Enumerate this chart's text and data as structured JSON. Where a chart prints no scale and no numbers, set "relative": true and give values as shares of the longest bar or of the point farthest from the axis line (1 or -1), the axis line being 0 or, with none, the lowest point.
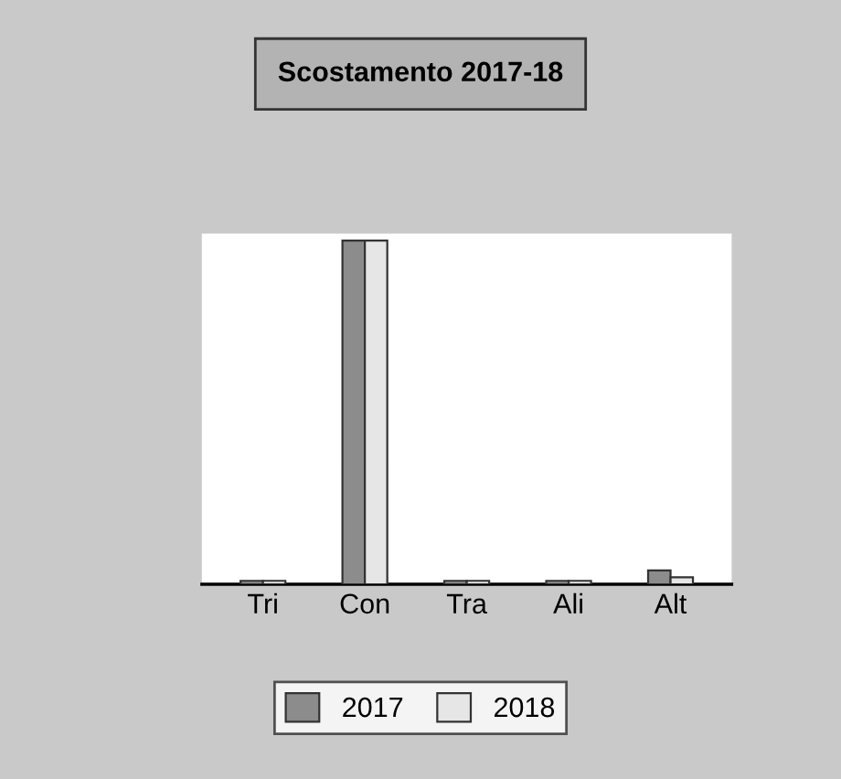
{
  "chart_data": {
    "type": "bar",
    "title": "Scostamento 2017-18",
    "relative": true,
    "categories": [
      "Tri",
      "Con",
      "Tra",
      "Ali",
      "Alt"
    ],
    "series": [
      {
        "name": "2017",
        "color": "#8c8c8c",
        "values": [
          0.01,
          1,
          0.01,
          0.01,
          0.04
        ]
      },
      {
        "name": "2018",
        "color": "#e6e6e6",
        "values": [
          0.01,
          1,
          0.01,
          0.01,
          0.02
        ]
      }
    ],
    "legend": "bottom"
  }
}
